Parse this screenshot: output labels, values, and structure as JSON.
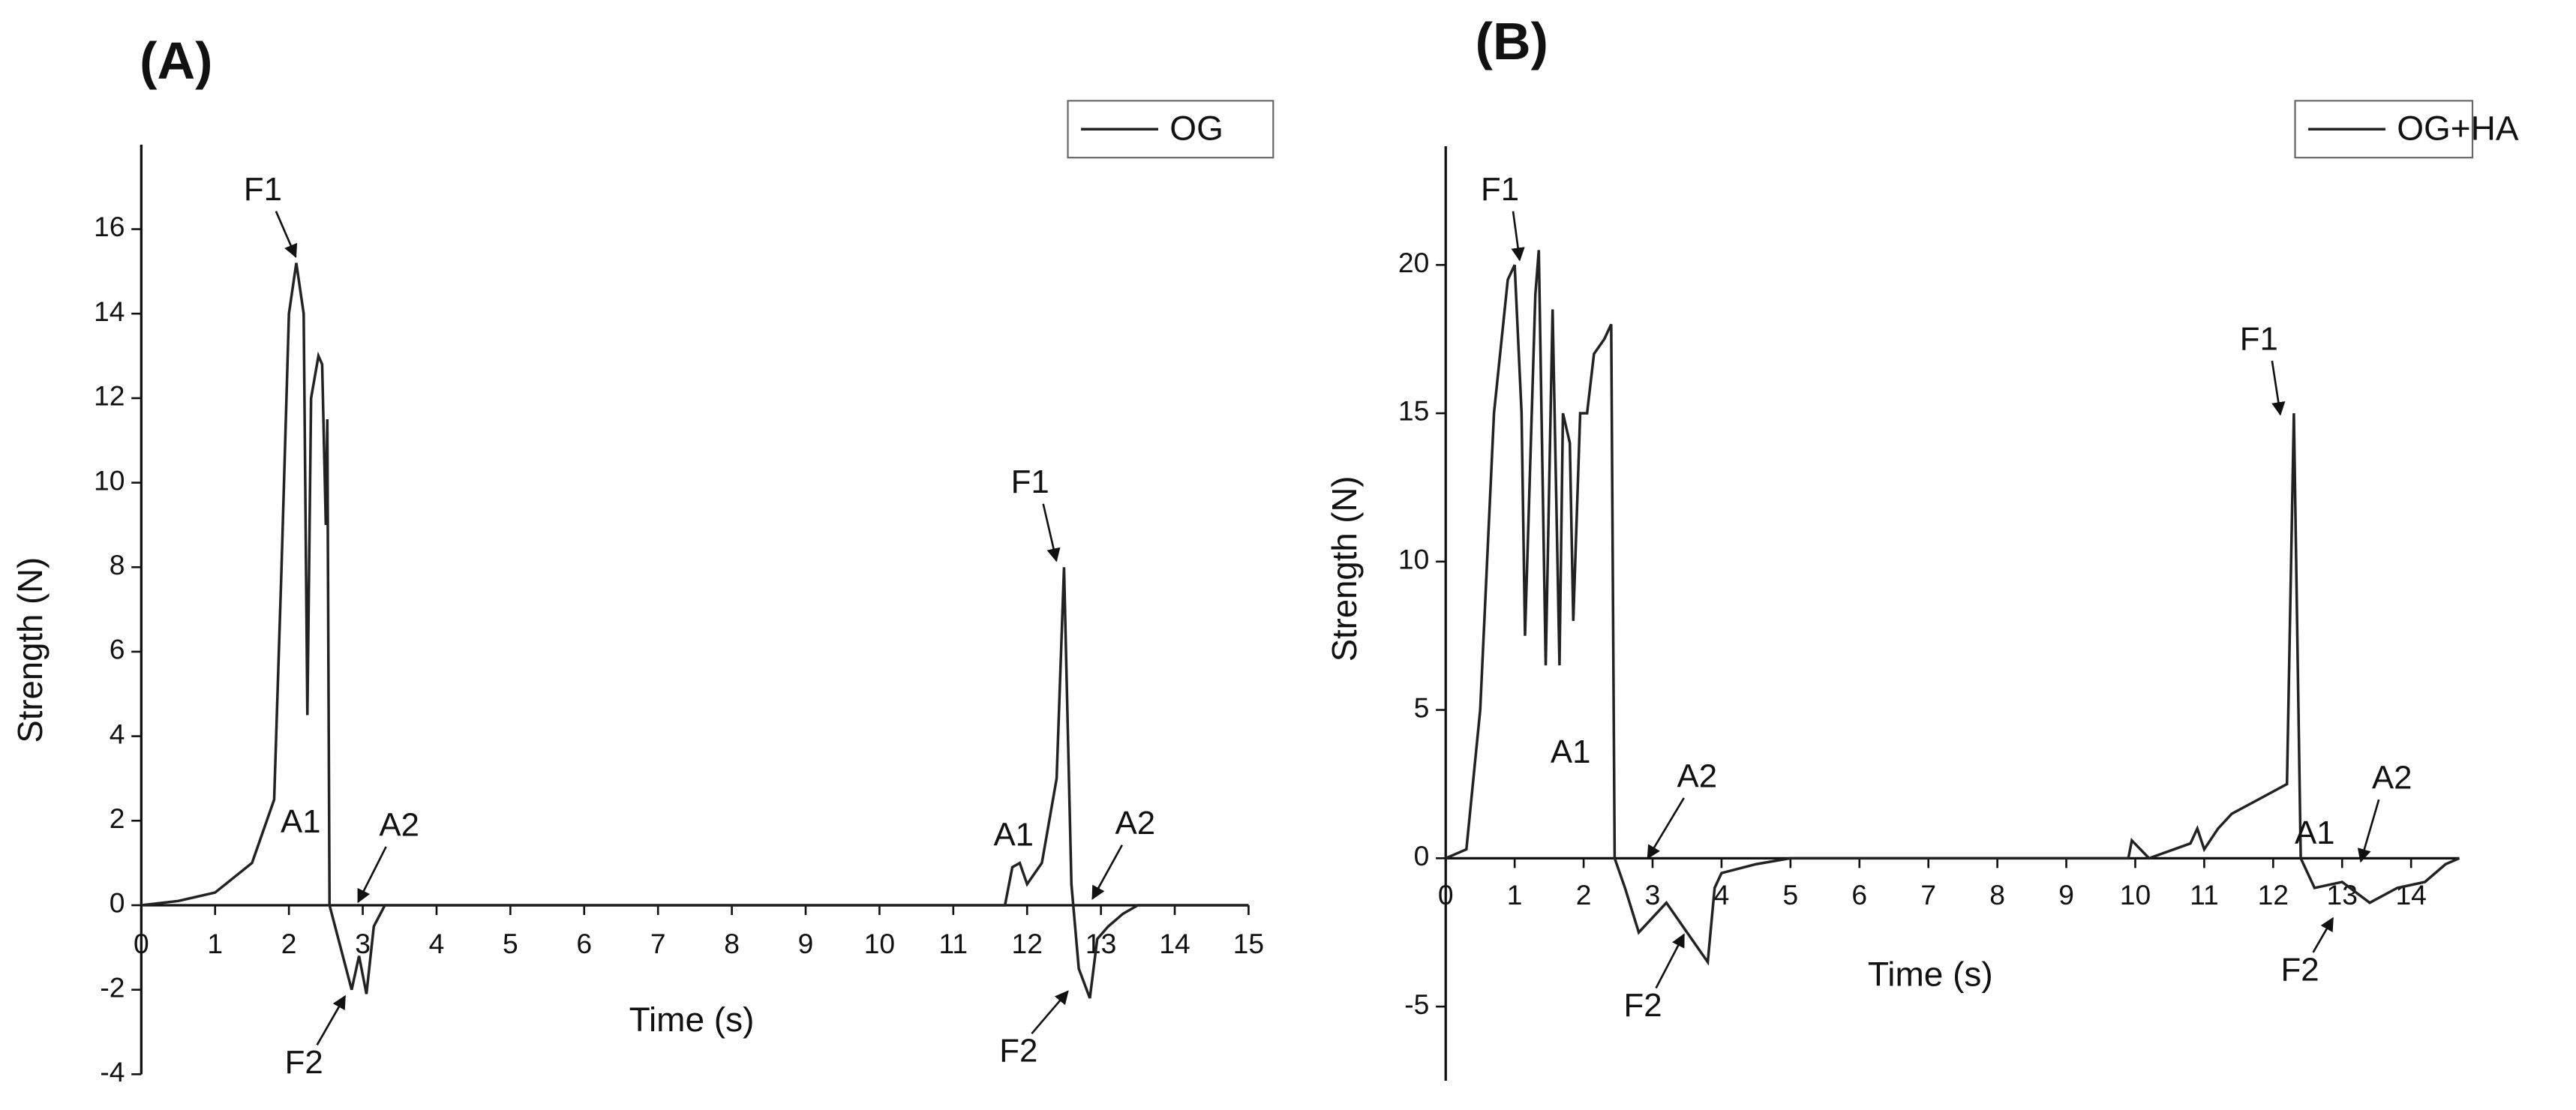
{
  "chart_data": [
    {
      "type": "line",
      "title": "(A)",
      "xlabel": "Time (s)",
      "ylabel": "Strength (N)",
      "xlim": [
        0,
        15
      ],
      "ylim": [
        -4,
        18
      ],
      "xticks": [
        0,
        1,
        2,
        3,
        4,
        5,
        6,
        7,
        8,
        9,
        10,
        11,
        12,
        13,
        14,
        15
      ],
      "yticks": [
        -4,
        -2,
        0,
        2,
        4,
        6,
        8,
        10,
        12,
        14,
        16
      ],
      "legend": "upper right",
      "annotations": [
        "F1",
        "A1",
        "A2",
        "F2",
        "F1",
        "A1",
        "A2",
        "F2"
      ],
      "x": [
        0,
        0.5,
        1,
        1.5,
        1.8,
        1.9,
        2.0,
        2.1,
        2.2,
        2.25,
        2.3,
        2.4,
        2.45,
        2.5,
        2.52,
        2.55,
        2.7,
        2.85,
        2.95,
        3.05,
        3.15,
        3.3,
        3.5,
        11.7,
        11.8,
        11.9,
        12.0,
        12.2,
        12.4,
        12.5,
        12.6,
        12.7,
        12.85,
        12.95,
        13.1,
        13.3,
        13.5,
        15
      ],
      "series": [
        {
          "name": "OG",
          "color": "#222222",
          "values": [
            0,
            0.1,
            0.3,
            1.0,
            2.5,
            8,
            14,
            15.2,
            14,
            4.5,
            12,
            13,
            12.8,
            9,
            11.5,
            0,
            -1,
            -2,
            -1.2,
            -2.1,
            -0.5,
            0,
            0,
            0,
            0.9,
            1,
            0.5,
            1,
            3,
            8,
            0.5,
            -1.5,
            -2.2,
            -0.8,
            -0.5,
            -0.2,
            0,
            0
          ]
        }
      ]
    },
    {
      "type": "line",
      "title": "(B)",
      "xlabel": "Time (s)",
      "ylabel": "Strength (N)",
      "xlim": [
        0,
        14.7
      ],
      "ylim": [
        -7.5,
        24
      ],
      "xticks": [
        0,
        1,
        2,
        3,
        4,
        5,
        6,
        7,
        8,
        9,
        10,
        11,
        12,
        13,
        14
      ],
      "yticks": [
        -5,
        0,
        5,
        10,
        15,
        20
      ],
      "legend": "upper right",
      "annotations": [
        "F1",
        "A1",
        "A2",
        "F2",
        "F1",
        "A1",
        "A2",
        "F2"
      ],
      "x": [
        0,
        0.3,
        0.5,
        0.7,
        0.9,
        1.0,
        1.1,
        1.15,
        1.3,
        1.35,
        1.45,
        1.55,
        1.65,
        1.7,
        1.8,
        1.85,
        1.95,
        2.05,
        2.15,
        2.3,
        2.4,
        2.45,
        2.6,
        2.8,
        3.0,
        3.2,
        3.5,
        3.8,
        3.9,
        4.0,
        4.5,
        5,
        9.9,
        9.95,
        10.2,
        10.8,
        10.9,
        11.0,
        11.2,
        11.4,
        11.8,
        12.2,
        12.3,
        12.4,
        12.6,
        13.0,
        13.4,
        13.8,
        14.2,
        14.5,
        14.7
      ],
      "series": [
        {
          "name": "OG+HA",
          "color": "#222222",
          "values": [
            0,
            0.3,
            5,
            15,
            19.5,
            20,
            15,
            7.5,
            19,
            20.5,
            6.5,
            18.5,
            6.5,
            15,
            14,
            8,
            15,
            15,
            17,
            17.5,
            18,
            0,
            -1,
            -2.5,
            -2,
            -1.5,
            -2.5,
            -3.5,
            -1,
            -0.5,
            -0.2,
            0,
            0,
            0.6,
            0,
            0.5,
            1,
            0.3,
            1,
            1.5,
            2,
            2.5,
            15,
            0,
            -1,
            -0.8,
            -1.5,
            -1,
            -0.8,
            -0.2,
            0
          ]
        }
      ]
    }
  ]
}
